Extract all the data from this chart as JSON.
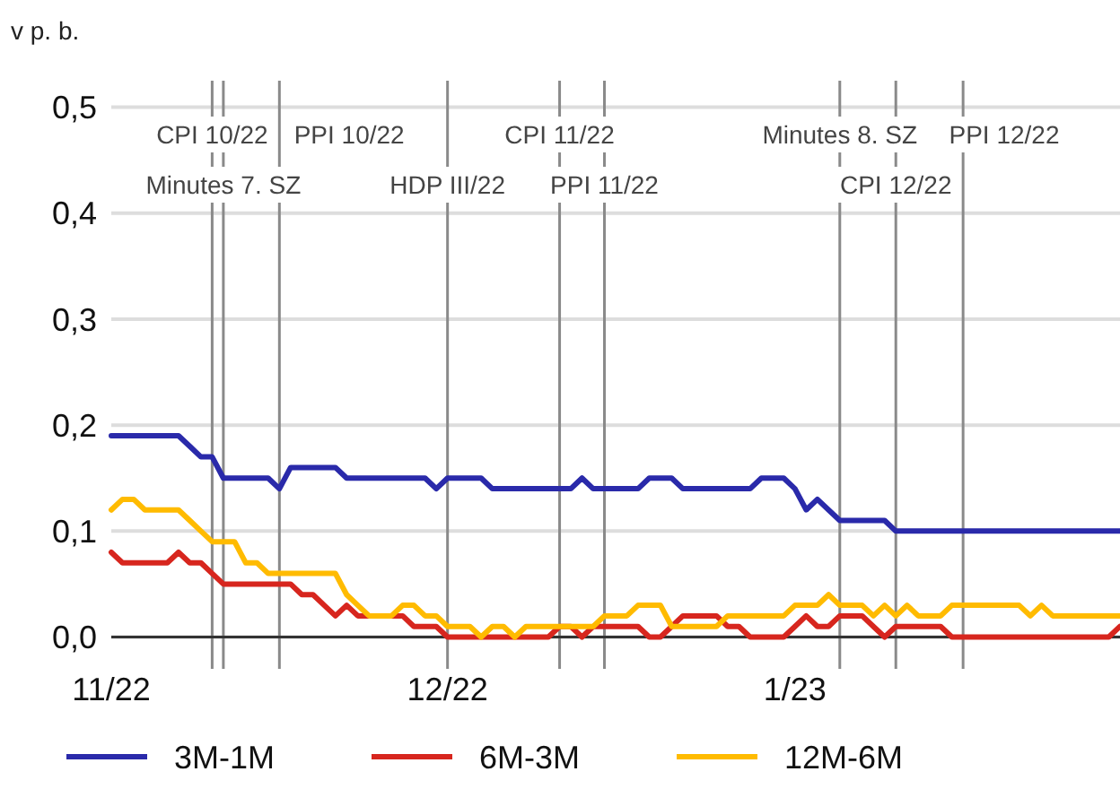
{
  "chart_data": {
    "type": "line",
    "ylabel": "v p. b.",
    "xlim": [
      "2022-11-01",
      "2023-01-30"
    ],
    "xticks": [
      {
        "value": "2022-11-01",
        "label": "11/22"
      },
      {
        "value": "2022-12-01",
        "label": "12/22"
      },
      {
        "value": "2023-01-01",
        "label": "1/23"
      }
    ],
    "ylim": [
      -0.03,
      0.525
    ],
    "yticks": [
      {
        "value": 0,
        "label": "0,0"
      },
      {
        "value": 0.1,
        "label": "0,1"
      },
      {
        "value": 0.2,
        "label": "0,2"
      },
      {
        "value": 0.3,
        "label": "0,3"
      },
      {
        "value": 0.4,
        "label": "0,4"
      },
      {
        "value": 0.5,
        "label": "0,5"
      }
    ],
    "grid": "y",
    "legend": "bottom",
    "marker": "none",
    "line_style": "solid",
    "ref_lines": [
      {
        "axis": "x",
        "value": "2022-11-10",
        "label": "CPI 10/22",
        "color": "#8a8a8a"
      },
      {
        "axis": "x",
        "value": "2022-11-11",
        "label": "Minutes 7. SZ",
        "color": "#8a8a8a"
      },
      {
        "axis": "x",
        "value": "2022-11-16",
        "label": "PPI 10/22",
        "color": "#8a8a8a"
      },
      {
        "axis": "x",
        "value": "2022-12-01",
        "label": "HDP III/22",
        "color": "#8a8a8a"
      },
      {
        "axis": "x",
        "value": "2022-12-11",
        "label": "CPI 11/22",
        "color": "#8a8a8a"
      },
      {
        "axis": "x",
        "value": "2022-12-15",
        "label": "PPI 11/22",
        "color": "#8a8a8a"
      },
      {
        "axis": "x",
        "value": "2023-01-05",
        "label": "Minutes 8. SZ",
        "color": "#8a8a8a"
      },
      {
        "axis": "x",
        "value": "2023-01-10",
        "label": "CPI 12/22",
        "color": "#8a8a8a"
      },
      {
        "axis": "x",
        "value": "2023-01-16",
        "label": "PPI 12/22",
        "color": "#8a8a8a"
      }
    ],
    "series": [
      {
        "name": "3M-1M",
        "color": "#2a2aaa",
        "x": [
          "2022-11-01",
          "2022-11-07",
          "2022-11-08",
          "2022-11-09",
          "2022-11-10",
          "2022-11-11",
          "2022-11-15",
          "2022-11-16",
          "2022-11-17",
          "2022-11-21",
          "2022-11-22",
          "2022-11-29",
          "2022-11-30",
          "2022-12-01",
          "2022-12-04",
          "2022-12-05",
          "2022-12-12",
          "2022-12-13",
          "2022-12-14",
          "2022-12-18",
          "2022-12-19",
          "2022-12-21",
          "2022-12-22",
          "2022-12-28",
          "2022-12-29",
          "2022-12-31",
          "2023-01-01",
          "2023-01-02",
          "2023-01-03",
          "2023-01-04",
          "2023-01-05",
          "2023-01-09",
          "2023-01-10",
          "2023-01-30"
        ],
        "values": [
          0.19,
          0.19,
          0.18,
          0.17,
          0.17,
          0.15,
          0.15,
          0.14,
          0.16,
          0.16,
          0.15,
          0.15,
          0.14,
          0.15,
          0.15,
          0.14,
          0.14,
          0.15,
          0.14,
          0.14,
          0.15,
          0.15,
          0.14,
          0.14,
          0.15,
          0.15,
          0.14,
          0.12,
          0.13,
          0.12,
          0.11,
          0.11,
          0.1,
          0.1
        ]
      },
      {
        "name": "6M-3M",
        "color": "#d7261e",
        "x": [
          "2022-11-01",
          "2022-11-02",
          "2022-11-06",
          "2022-11-07",
          "2022-11-08",
          "2022-11-09",
          "2022-11-10",
          "2022-11-11",
          "2022-11-17",
          "2022-11-18",
          "2022-11-19",
          "2022-11-20",
          "2022-11-21",
          "2022-11-22",
          "2022-11-23",
          "2022-11-27",
          "2022-11-28",
          "2022-11-30",
          "2022-12-01",
          "2022-12-10",
          "2022-12-11",
          "2022-12-12",
          "2022-12-13",
          "2022-12-14",
          "2022-12-18",
          "2022-12-19",
          "2022-12-20",
          "2022-12-21",
          "2022-12-22",
          "2022-12-25",
          "2022-12-26",
          "2022-12-27",
          "2022-12-28",
          "2022-12-31",
          "2023-01-01",
          "2023-01-02",
          "2023-01-03",
          "2023-01-04",
          "2023-01-05",
          "2023-01-07",
          "2023-01-08",
          "2023-01-09",
          "2023-01-10",
          "2023-01-14",
          "2023-01-15",
          "2023-01-29",
          "2023-01-30"
        ],
        "values": [
          0.08,
          0.07,
          0.07,
          0.08,
          0.07,
          0.07,
          0.06,
          0.05,
          0.05,
          0.04,
          0.04,
          0.03,
          0.02,
          0.03,
          0.02,
          0.02,
          0.01,
          0.01,
          0.0,
          0.0,
          0.01,
          0.01,
          0.0,
          0.01,
          0.01,
          0.0,
          0.0,
          0.01,
          0.02,
          0.02,
          0.01,
          0.01,
          0.0,
          0.0,
          0.01,
          0.02,
          0.01,
          0.01,
          0.02,
          0.02,
          0.01,
          0.0,
          0.01,
          0.01,
          0.0,
          0.0,
          0.01
        ]
      },
      {
        "name": "12M-6M",
        "color": "#ffbb00",
        "x": [
          "2022-11-01",
          "2022-11-02",
          "2022-11-03",
          "2022-11-04",
          "2022-11-07",
          "2022-11-08",
          "2022-11-09",
          "2022-11-10",
          "2022-11-12",
          "2022-11-13",
          "2022-11-14",
          "2022-11-15",
          "2022-11-21",
          "2022-11-22",
          "2022-11-23",
          "2022-11-24",
          "2022-11-26",
          "2022-11-27",
          "2022-11-28",
          "2022-11-29",
          "2022-11-30",
          "2022-12-01",
          "2022-12-03",
          "2022-12-04",
          "2022-12-05",
          "2022-12-06",
          "2022-12-07",
          "2022-12-08",
          "2022-12-14",
          "2022-12-15",
          "2022-12-17",
          "2022-12-18",
          "2022-12-20",
          "2022-12-21",
          "2022-12-25",
          "2022-12-26",
          "2022-12-31",
          "2023-01-01",
          "2023-01-03",
          "2023-01-04",
          "2023-01-05",
          "2023-01-07",
          "2023-01-08",
          "2023-01-09",
          "2023-01-10",
          "2023-01-11",
          "2023-01-12",
          "2023-01-14",
          "2023-01-15",
          "2023-01-21",
          "2023-01-22",
          "2023-01-23",
          "2023-01-24",
          "2023-01-30"
        ],
        "values": [
          0.12,
          0.13,
          0.13,
          0.12,
          0.12,
          0.11,
          0.1,
          0.09,
          0.09,
          0.07,
          0.07,
          0.06,
          0.06,
          0.04,
          0.03,
          0.02,
          0.02,
          0.03,
          0.03,
          0.02,
          0.02,
          0.01,
          0.01,
          0.0,
          0.01,
          0.01,
          0.0,
          0.01,
          0.01,
          0.02,
          0.02,
          0.03,
          0.03,
          0.01,
          0.01,
          0.02,
          0.02,
          0.03,
          0.03,
          0.04,
          0.03,
          0.03,
          0.02,
          0.03,
          0.02,
          0.03,
          0.02,
          0.02,
          0.03,
          0.03,
          0.02,
          0.03,
          0.02,
          0.02
        ]
      }
    ]
  }
}
